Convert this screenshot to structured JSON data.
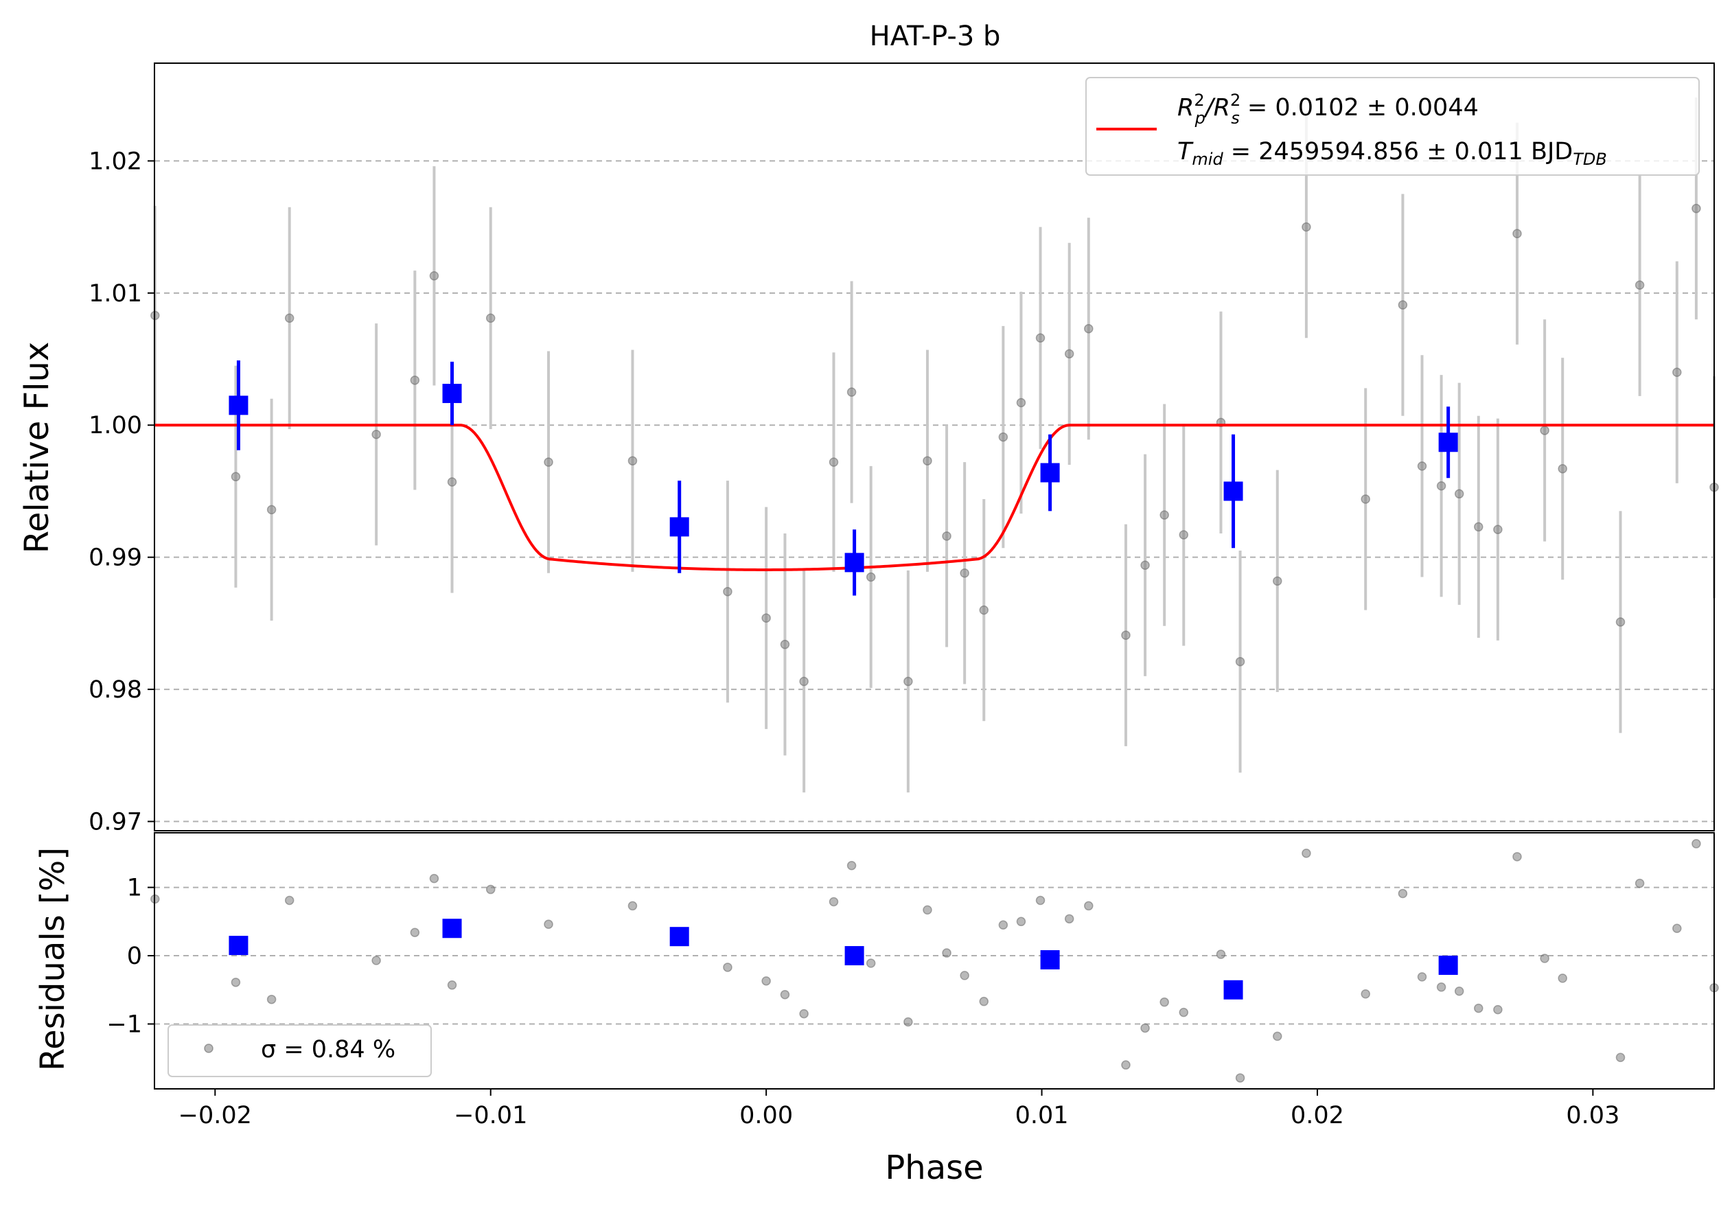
{
  "chart_data": [
    {
      "panel": "top",
      "type": "scatter",
      "title": "HAT-P-3 b",
      "xlabel": "",
      "ylabel": "Relative Flux",
      "xlim": [
        -0.0222,
        0.0344
      ],
      "ylim": [
        0.9693,
        1.0274
      ],
      "x_ticks": [
        "−0.02",
        "−0.01",
        "0.00",
        "0.01",
        "0.02",
        "0.03"
      ],
      "y_ticks": [
        {
          "v": 0.97,
          "label": "0.97"
        },
        {
          "v": 0.98,
          "label": "0.98"
        },
        {
          "v": 0.99,
          "label": "0.99"
        },
        {
          "v": 1.0,
          "label": "1.00"
        },
        {
          "v": 1.01,
          "label": "1.01"
        },
        {
          "v": 1.02,
          "label": "1.02"
        }
      ],
      "grid": "horizontal dashed",
      "legend": {
        "position": "top-right",
        "line1": "R²ₚ/R²ₛ = 0.0102 ± 0.0044",
        "line1_parts": {
          "a": "R",
          "a_sup": "2",
          "a_sub": "p",
          "slash": "/R",
          "b_sup": "2",
          "b_sub": "s",
          "rest": " = 0.0102 ± 0.0044"
        },
        "line2": "T_mid = 2459594.856 ± 0.011 BJD_TDB",
        "line2_parts": {
          "a": "T",
          "a_sub": "mid",
          "rest": " = 2459594.856 ± 0.011 BJD",
          "rest_sub": "TDB"
        }
      },
      "model": {
        "color": "#ff0000",
        "baseline": 1.0,
        "depth_min": 0.98905,
        "t1": -0.0111,
        "t2": -0.0078,
        "t3": 0.0076,
        "t4": 0.011
      },
      "raw_points": {
        "color": "#808080",
        "errcolor": "#c8c8c8",
        "points": [
          {
            "x": -0.02218,
            "y": 1.0083,
            "e": 0.0083
          },
          {
            "x": -0.01925,
            "y": 0.9961,
            "e": 0.0084
          },
          {
            "x": -0.01795,
            "y": 0.9936,
            "e": 0.0084
          },
          {
            "x": -0.0173,
            "y": 1.0081,
            "e": 0.0084
          },
          {
            "x": -0.01415,
            "y": 0.9993,
            "e": 0.0084
          },
          {
            "x": -0.01275,
            "y": 1.0034,
            "e": 0.0083
          },
          {
            "x": -0.01205,
            "y": 1.0113,
            "e": 0.0083
          },
          {
            "x": -0.0114,
            "y": 0.9957,
            "e": 0.0084
          },
          {
            "x": -0.01,
            "y": 1.0081,
            "e": 0.0084
          },
          {
            "x": -0.0079,
            "y": 0.9972,
            "e": 0.0084
          },
          {
            "x": -0.00485,
            "y": 0.9973,
            "e": 0.0084
          },
          {
            "x": -0.0014,
            "y": 0.9874,
            "e": 0.0084
          },
          {
            "x": 0.0,
            "y": 0.9854,
            "e": 0.0084
          },
          {
            "x": 0.00068,
            "y": 0.9834,
            "e": 0.0084
          },
          {
            "x": 0.00137,
            "y": 0.9806,
            "e": 0.0084
          },
          {
            "x": 0.00245,
            "y": 0.9972,
            "e": 0.0083
          },
          {
            "x": 0.0031,
            "y": 1.0025,
            "e": 0.0084
          },
          {
            "x": 0.0038,
            "y": 0.9885,
            "e": 0.0084
          },
          {
            "x": 0.00515,
            "y": 0.9806,
            "e": 0.0084
          },
          {
            "x": 0.00585,
            "y": 0.9973,
            "e": 0.0084
          },
          {
            "x": 0.00655,
            "y": 0.9916,
            "e": 0.0084
          },
          {
            "x": 0.0072,
            "y": 0.9888,
            "e": 0.0084
          },
          {
            "x": 0.0079,
            "y": 0.986,
            "e": 0.0084
          },
          {
            "x": 0.0086,
            "y": 0.9991,
            "e": 0.0084
          },
          {
            "x": 0.00925,
            "y": 1.0017,
            "e": 0.0084
          },
          {
            "x": 0.00995,
            "y": 1.0066,
            "e": 0.0084
          },
          {
            "x": 0.011,
            "y": 1.0054,
            "e": 0.0084
          },
          {
            "x": 0.0117,
            "y": 1.0073,
            "e": 0.0084
          },
          {
            "x": 0.01305,
            "y": 0.9841,
            "e": 0.0084
          },
          {
            "x": 0.01375,
            "y": 0.9894,
            "e": 0.0084
          },
          {
            "x": 0.01445,
            "y": 0.9932,
            "e": 0.0084
          },
          {
            "x": 0.01515,
            "y": 0.9917,
            "e": 0.0084
          },
          {
            "x": 0.0165,
            "y": 1.0002,
            "e": 0.0084
          },
          {
            "x": 0.0172,
            "y": 0.9821,
            "e": 0.0084
          },
          {
            "x": 0.01855,
            "y": 0.9882,
            "e": 0.0084
          },
          {
            "x": 0.0196,
            "y": 1.015,
            "e": 0.0084
          },
          {
            "x": 0.02175,
            "y": 0.9944,
            "e": 0.0084
          },
          {
            "x": 0.0231,
            "y": 1.0091,
            "e": 0.0084
          },
          {
            "x": 0.0238,
            "y": 0.9969,
            "e": 0.0084
          },
          {
            "x": 0.0245,
            "y": 0.9954,
            "e": 0.0084
          },
          {
            "x": 0.02515,
            "y": 0.9948,
            "e": 0.0084
          },
          {
            "x": 0.02585,
            "y": 0.9923,
            "e": 0.0084
          },
          {
            "x": 0.02655,
            "y": 0.9921,
            "e": 0.0084
          },
          {
            "x": 0.02825,
            "y": 0.9996,
            "e": 0.0084
          },
          {
            "x": 0.0289,
            "y": 0.9967,
            "e": 0.0084
          },
          {
            "x": 0.02725,
            "y": 1.0145,
            "e": 0.0084
          },
          {
            "x": 0.031,
            "y": 0.9851,
            "e": 0.0084
          },
          {
            "x": 0.0317,
            "y": 1.0106,
            "e": 0.0084
          },
          {
            "x": 0.03305,
            "y": 1.004,
            "e": 0.0084
          },
          {
            "x": 0.03375,
            "y": 1.0164,
            "e": 0.0084
          },
          {
            "x": 0.0344,
            "y": 0.9953,
            "e": 0.0084
          }
        ]
      },
      "binned_points": {
        "color": "#0000ff",
        "points": [
          {
            "x": -0.01915,
            "y": 1.0015,
            "e": 0.0034
          },
          {
            "x": -0.0114,
            "y": 1.0024,
            "e": 0.0024
          },
          {
            "x": -0.00315,
            "y": 0.9923,
            "e": 0.0035
          },
          {
            "x": 0.0032,
            "y": 0.9896,
            "e": 0.0025
          },
          {
            "x": 0.0103,
            "y": 0.9964,
            "e": 0.0029
          },
          {
            "x": 0.01695,
            "y": 0.995,
            "e": 0.0043
          },
          {
            "x": 0.02475,
            "y": 0.9987,
            "e": 0.0027
          }
        ]
      }
    },
    {
      "panel": "bottom",
      "type": "scatter",
      "xlabel": "Phase",
      "ylabel": "Residuals [%]",
      "xlim": [
        -0.0222,
        0.0344
      ],
      "ylim": [
        -1.95,
        1.8
      ],
      "x_ticks": [
        {
          "v": -0.02,
          "label": "−0.02"
        },
        {
          "v": -0.01,
          "label": "−0.01"
        },
        {
          "v": 0.0,
          "label": "0.00"
        },
        {
          "v": 0.01,
          "label": "0.01"
        },
        {
          "v": 0.02,
          "label": "0.02"
        },
        {
          "v": 0.03,
          "label": "0.03"
        }
      ],
      "y_ticks": [
        {
          "v": -1,
          "label": "−1"
        },
        {
          "v": 0,
          "label": "0"
        },
        {
          "v": 1,
          "label": "1"
        }
      ],
      "grid": "horizontal dashed",
      "legend": {
        "position": "bottom-left",
        "label": "σ = 0.84 %"
      },
      "raw_residuals": [
        {
          "x": -0.02218,
          "y": 0.83
        },
        {
          "x": -0.01925,
          "y": -0.39
        },
        {
          "x": -0.01795,
          "y": -0.64
        },
        {
          "x": -0.0173,
          "y": 0.81
        },
        {
          "x": -0.01415,
          "y": -0.07
        },
        {
          "x": -0.01275,
          "y": 0.34
        },
        {
          "x": -0.01205,
          "y": 1.13
        },
        {
          "x": -0.0114,
          "y": -0.43
        },
        {
          "x": -0.01,
          "y": 0.97
        },
        {
          "x": -0.0079,
          "y": 0.46
        },
        {
          "x": -0.00485,
          "y": 0.73
        },
        {
          "x": -0.0014,
          "y": -0.17
        },
        {
          "x": 0.0,
          "y": -0.37
        },
        {
          "x": 0.00068,
          "y": -0.57
        },
        {
          "x": 0.00137,
          "y": -0.85
        },
        {
          "x": 0.00245,
          "y": 0.79
        },
        {
          "x": 0.0031,
          "y": 1.32
        },
        {
          "x": 0.0038,
          "y": -0.11
        },
        {
          "x": 0.00515,
          "y": -0.97
        },
        {
          "x": 0.00585,
          "y": 0.67
        },
        {
          "x": 0.00655,
          "y": 0.04
        },
        {
          "x": 0.0072,
          "y": -0.29
        },
        {
          "x": 0.0079,
          "y": -0.67
        },
        {
          "x": 0.0086,
          "y": 0.45
        },
        {
          "x": 0.00925,
          "y": 0.5
        },
        {
          "x": 0.00995,
          "y": 0.81
        },
        {
          "x": 0.011,
          "y": 0.54
        },
        {
          "x": 0.0117,
          "y": 0.73
        },
        {
          "x": 0.01305,
          "y": -1.6
        },
        {
          "x": 0.01375,
          "y": -1.06
        },
        {
          "x": 0.01445,
          "y": -0.68
        },
        {
          "x": 0.01515,
          "y": -0.83
        },
        {
          "x": 0.0165,
          "y": 0.02
        },
        {
          "x": 0.0172,
          "y": -1.79
        },
        {
          "x": 0.01855,
          "y": -1.18
        },
        {
          "x": 0.0196,
          "y": 1.5
        },
        {
          "x": 0.02175,
          "y": -0.56
        },
        {
          "x": 0.0231,
          "y": 0.91
        },
        {
          "x": 0.0238,
          "y": -0.31
        },
        {
          "x": 0.0245,
          "y": -0.46
        },
        {
          "x": 0.02515,
          "y": -0.52
        },
        {
          "x": 0.02585,
          "y": -0.77
        },
        {
          "x": 0.02655,
          "y": -0.79
        },
        {
          "x": 0.02825,
          "y": -0.04
        },
        {
          "x": 0.0289,
          "y": -0.33
        },
        {
          "x": 0.02725,
          "y": 1.45
        },
        {
          "x": 0.031,
          "y": -1.49
        },
        {
          "x": 0.0317,
          "y": 1.06
        },
        {
          "x": 0.03305,
          "y": 0.4
        },
        {
          "x": 0.03375,
          "y": 1.64
        },
        {
          "x": 0.0344,
          "y": -0.47
        }
      ],
      "binned_residuals": [
        {
          "x": -0.01915,
          "y": 0.15
        },
        {
          "x": -0.0114,
          "y": 0.4
        },
        {
          "x": -0.00315,
          "y": 0.28
        },
        {
          "x": 0.0032,
          "y": 0.0
        },
        {
          "x": 0.0103,
          "y": -0.06
        },
        {
          "x": 0.01695,
          "y": -0.5
        },
        {
          "x": 0.02475,
          "y": -0.14
        }
      ]
    }
  ]
}
